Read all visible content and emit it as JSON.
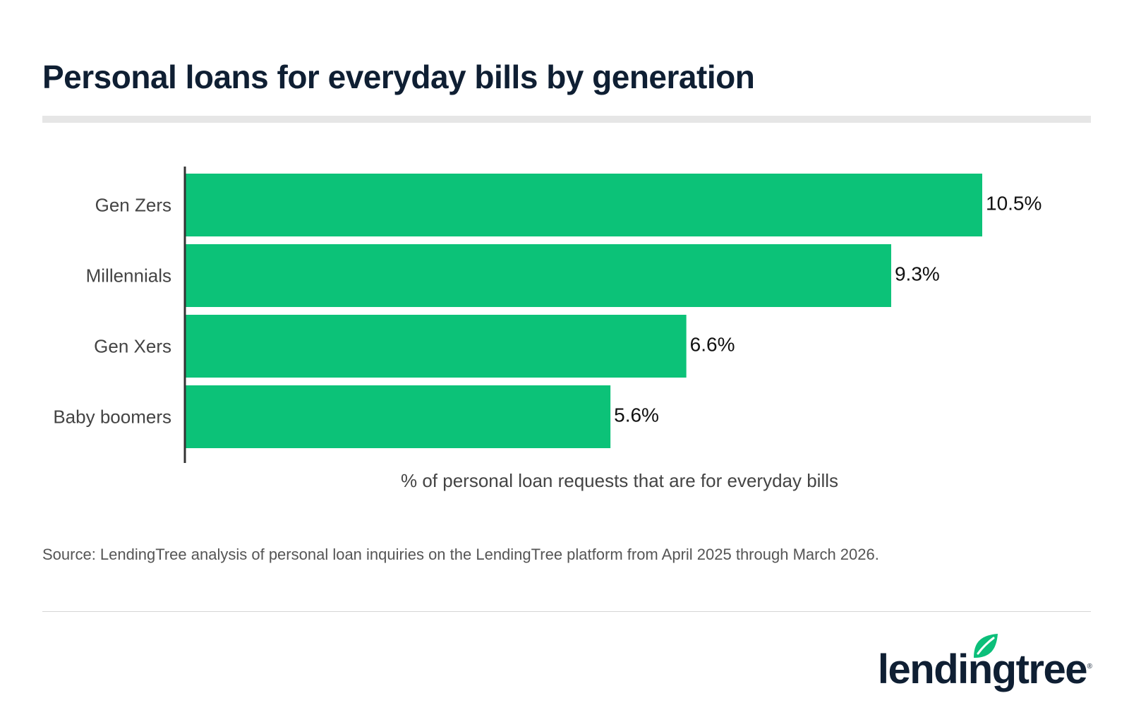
{
  "title": "Personal loans for everyday bills by generation",
  "source": "Source: LendingTree analysis of personal loan inquiries on the LendingTree platform from April 2025 through March 2026.",
  "brand": {
    "name": "lendingtree",
    "registered": "®",
    "text_color": "#0f1f33",
    "leaf_color": "#0cbf7a",
    "logo_icon": "leaf-icon"
  },
  "chart_data": {
    "type": "bar",
    "orientation": "horizontal",
    "categories": [
      "Gen Zers",
      "Millennials",
      "Gen Xers",
      "Baby boomers"
    ],
    "values": [
      10.5,
      9.3,
      6.6,
      5.6
    ],
    "value_labels": [
      "10.5%",
      "9.3%",
      "6.6%",
      "5.6%"
    ],
    "xlabel": "% of personal loan requests that are for everyday bills",
    "ylabel": "",
    "xlim": [
      0,
      10.5
    ],
    "grid": false,
    "bar_color": "#0cc278",
    "axis_color": "#333333"
  }
}
